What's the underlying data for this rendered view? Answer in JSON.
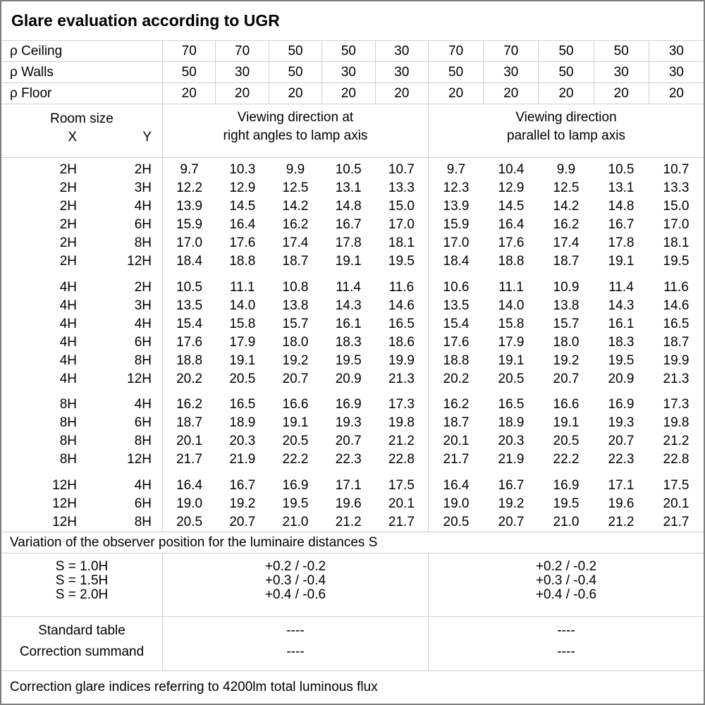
{
  "title": "Glare evaluation according to UGR",
  "reflectance": {
    "rows": [
      {
        "label": "ρ Ceiling",
        "values": [
          "70",
          "70",
          "50",
          "50",
          "30",
          "70",
          "70",
          "50",
          "50",
          "30"
        ]
      },
      {
        "label": "ρ Walls",
        "values": [
          "50",
          "30",
          "50",
          "30",
          "30",
          "50",
          "30",
          "50",
          "30",
          "30"
        ]
      },
      {
        "label": "ρ Floor",
        "values": [
          "20",
          "20",
          "20",
          "20",
          "20",
          "20",
          "20",
          "20",
          "20",
          "20"
        ]
      }
    ]
  },
  "header": {
    "room_size": "Room size",
    "x": "X",
    "y": "Y",
    "left_heading_line1": "Viewing direction at",
    "left_heading_line2": "right angles to lamp axis",
    "right_heading_line1": "Viewing direction",
    "right_heading_line2": "parallel to lamp axis"
  },
  "ugr_blocks": [
    {
      "rows": [
        {
          "x": "2H",
          "y": "2H",
          "right_angles": [
            "9.7",
            "10.3",
            "9.9",
            "10.5",
            "10.7"
          ],
          "parallel": [
            "9.7",
            "10.4",
            "9.9",
            "10.5",
            "10.7"
          ]
        },
        {
          "x": "2H",
          "y": "3H",
          "right_angles": [
            "12.2",
            "12.9",
            "12.5",
            "13.1",
            "13.3"
          ],
          "parallel": [
            "12.3",
            "12.9",
            "12.5",
            "13.1",
            "13.3"
          ]
        },
        {
          "x": "2H",
          "y": "4H",
          "right_angles": [
            "13.9",
            "14.5",
            "14.2",
            "14.8",
            "15.0"
          ],
          "parallel": [
            "13.9",
            "14.5",
            "14.2",
            "14.8",
            "15.0"
          ]
        },
        {
          "x": "2H",
          "y": "6H",
          "right_angles": [
            "15.9",
            "16.4",
            "16.2",
            "16.7",
            "17.0"
          ],
          "parallel": [
            "15.9",
            "16.4",
            "16.2",
            "16.7",
            "17.0"
          ]
        },
        {
          "x": "2H",
          "y": "8H",
          "right_angles": [
            "17.0",
            "17.6",
            "17.4",
            "17.8",
            "18.1"
          ],
          "parallel": [
            "17.0",
            "17.6",
            "17.4",
            "17.8",
            "18.1"
          ]
        },
        {
          "x": "2H",
          "y": "12H",
          "right_angles": [
            "18.4",
            "18.8",
            "18.7",
            "19.1",
            "19.5"
          ],
          "parallel": [
            "18.4",
            "18.8",
            "18.7",
            "19.1",
            "19.5"
          ]
        }
      ]
    },
    {
      "rows": [
        {
          "x": "4H",
          "y": "2H",
          "right_angles": [
            "10.5",
            "11.1",
            "10.8",
            "11.4",
            "11.6"
          ],
          "parallel": [
            "10.6",
            "11.1",
            "10.9",
            "11.4",
            "11.6"
          ]
        },
        {
          "x": "4H",
          "y": "3H",
          "right_angles": [
            "13.5",
            "14.0",
            "13.8",
            "14.3",
            "14.6"
          ],
          "parallel": [
            "13.5",
            "14.0",
            "13.8",
            "14.3",
            "14.6"
          ]
        },
        {
          "x": "4H",
          "y": "4H",
          "right_angles": [
            "15.4",
            "15.8",
            "15.7",
            "16.1",
            "16.5"
          ],
          "parallel": [
            "15.4",
            "15.8",
            "15.7",
            "16.1",
            "16.5"
          ]
        },
        {
          "x": "4H",
          "y": "6H",
          "right_angles": [
            "17.6",
            "17.9",
            "18.0",
            "18.3",
            "18.6"
          ],
          "parallel": [
            "17.6",
            "17.9",
            "18.0",
            "18.3",
            "18.7"
          ]
        },
        {
          "x": "4H",
          "y": "8H",
          "right_angles": [
            "18.8",
            "19.1",
            "19.2",
            "19.5",
            "19.9"
          ],
          "parallel": [
            "18.8",
            "19.1",
            "19.2",
            "19.5",
            "19.9"
          ]
        },
        {
          "x": "4H",
          "y": "12H",
          "right_angles": [
            "20.2",
            "20.5",
            "20.7",
            "20.9",
            "21.3"
          ],
          "parallel": [
            "20.2",
            "20.5",
            "20.7",
            "20.9",
            "21.3"
          ]
        }
      ]
    },
    {
      "rows": [
        {
          "x": "8H",
          "y": "4H",
          "right_angles": [
            "16.2",
            "16.5",
            "16.6",
            "16.9",
            "17.3"
          ],
          "parallel": [
            "16.2",
            "16.5",
            "16.6",
            "16.9",
            "17.3"
          ]
        },
        {
          "x": "8H",
          "y": "6H",
          "right_angles": [
            "18.7",
            "18.9",
            "19.1",
            "19.3",
            "19.8"
          ],
          "parallel": [
            "18.7",
            "18.9",
            "19.1",
            "19.3",
            "19.8"
          ]
        },
        {
          "x": "8H",
          "y": "8H",
          "right_angles": [
            "20.1",
            "20.3",
            "20.5",
            "20.7",
            "21.2"
          ],
          "parallel": [
            "20.1",
            "20.3",
            "20.5",
            "20.7",
            "21.2"
          ]
        },
        {
          "x": "8H",
          "y": "12H",
          "right_angles": [
            "21.7",
            "21.9",
            "22.2",
            "22.3",
            "22.8"
          ],
          "parallel": [
            "21.7",
            "21.9",
            "22.2",
            "22.3",
            "22.8"
          ]
        }
      ]
    },
    {
      "rows": [
        {
          "x": "12H",
          "y": "4H",
          "right_angles": [
            "16.4",
            "16.7",
            "16.9",
            "17.1",
            "17.5"
          ],
          "parallel": [
            "16.4",
            "16.7",
            "16.9",
            "17.1",
            "17.5"
          ]
        },
        {
          "x": "12H",
          "y": "6H",
          "right_angles": [
            "19.0",
            "19.2",
            "19.5",
            "19.6",
            "20.1"
          ],
          "parallel": [
            "19.0",
            "19.2",
            "19.5",
            "19.6",
            "20.1"
          ]
        },
        {
          "x": "12H",
          "y": "8H",
          "right_angles": [
            "20.5",
            "20.7",
            "21.0",
            "21.2",
            "21.7"
          ],
          "parallel": [
            "20.5",
            "20.7",
            "21.0",
            "21.2",
            "21.7"
          ]
        }
      ]
    }
  ],
  "variation_note": "Variation of the observer position for the luminaire distances S",
  "spacing_section": {
    "rows": [
      {
        "label": "S = 1.0H",
        "left": "+0.2 / -0.2",
        "right": "+0.2 / -0.2"
      },
      {
        "label": "S = 1.5H",
        "left": "+0.3 / -0.4",
        "right": "+0.3 / -0.4"
      },
      {
        "label": "S = 2.0H",
        "left": "+0.4 / -0.6",
        "right": "+0.4 / -0.6"
      }
    ]
  },
  "summary_section": {
    "rows": [
      {
        "label": "Standard table",
        "left": "----",
        "right": "----"
      },
      {
        "label": "Correction summand",
        "left": "----",
        "right": "----"
      }
    ]
  },
  "footer_note": "Correction glare indices referring to 4200lm total luminous flux",
  "colors": {
    "grid_line": "#d0d0d0",
    "outer_border": "#7f7f7f",
    "text": "#000000",
    "background": "#ffffff"
  }
}
